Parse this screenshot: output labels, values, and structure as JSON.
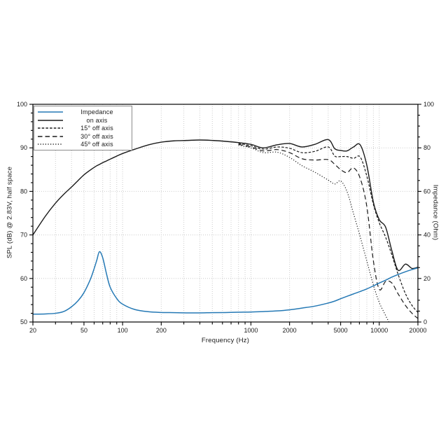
{
  "page": {
    "background": "#ffffff"
  },
  "chart": {
    "x_axis": {
      "title": "Frequency (Hz)",
      "scale": "log",
      "min": 20,
      "max": 20000,
      "labeled_ticks": [
        20,
        50,
        100,
        200,
        1000,
        2000,
        5000,
        10000,
        20000
      ],
      "all_ticks": [
        20,
        30,
        40,
        50,
        60,
        70,
        80,
        90,
        100,
        200,
        300,
        400,
        500,
        600,
        700,
        800,
        900,
        1000,
        2000,
        3000,
        4000,
        5000,
        6000,
        7000,
        8000,
        9000,
        10000,
        20000
      ]
    },
    "y_left": {
      "title": "SPL (dB) @ 2.83V, half space",
      "min": 50,
      "max": 100,
      "labeled_ticks": [
        50,
        60,
        70,
        80,
        90,
        100
      ],
      "major_tick_step": 10,
      "minor_tick_step": 2,
      "gridline_values": [
        60,
        70,
        80,
        90
      ]
    },
    "y_right": {
      "title": "Impedance (Ohm)",
      "min": 0,
      "max": 100,
      "labeled_ticks": [
        0,
        20,
        40,
        60,
        80,
        100
      ],
      "major_tick_step": 20,
      "minor_tick_step": 5
    },
    "colors": {
      "axis": "#000000",
      "gridline": "#cccccc",
      "impedance_blue": "#2579b5",
      "spl_black": "#1a1a1a",
      "legend_border": "#8c8c8c",
      "tick_label": "#1a1a1a"
    }
  },
  "legend": {
    "items": [
      {
        "label": "Impedance",
        "style": "solid",
        "color": "#2579b5"
      },
      {
        "label": "on axis",
        "style": "solid",
        "color": "#1a1a1a"
      },
      {
        "label": "15° off axis",
        "style": "dash-small",
        "color": "#1a1a1a"
      },
      {
        "label": "30° off axis",
        "style": "dash-medium",
        "color": "#1a1a1a"
      },
      {
        "label": "45º off axis",
        "style": "dot",
        "color": "#1a1a1a"
      }
    ]
  },
  "chart_data": {
    "type": "line",
    "x_scale": "log",
    "xlabel": "Frequency (Hz)",
    "ylabel_left": "SPL (dB) @ 2.83V, half space",
    "ylabel_right": "Impedance (Ohm)",
    "xlim": [
      20,
      20000
    ],
    "ylim_left": [
      50,
      100
    ],
    "ylim_right": [
      0,
      100
    ],
    "grid": true,
    "legend_position": "top-left",
    "frequencies_hz": [
      20,
      25,
      30,
      35,
      40,
      45,
      50,
      56,
      60,
      63,
      66,
      70,
      75,
      80,
      90,
      100,
      125,
      160,
      200,
      250,
      315,
      400,
      500,
      630,
      800,
      1000,
      1250,
      1600,
      2000,
      2500,
      3150,
      4000,
      4500,
      5000,
      5600,
      6300,
      7100,
      8000,
      9000,
      10000,
      11200,
      12500,
      14000,
      16000,
      18000,
      20000
    ],
    "series": [
      {
        "name": "Impedance",
        "axis": "right",
        "unit": "Ohm",
        "style": "solid",
        "color": "#2579b5",
        "width": 1.5,
        "values": [
          3.6,
          3.7,
          4.0,
          4.9,
          7.0,
          9.8,
          13.5,
          19.5,
          24.5,
          28.5,
          32.3,
          29.5,
          22.0,
          16.0,
          10.8,
          8.2,
          5.7,
          4.7,
          4.4,
          4.3,
          4.2,
          4.2,
          4.3,
          4.35,
          4.5,
          4.6,
          4.8,
          5.1,
          5.6,
          6.4,
          7.3,
          8.7,
          9.6,
          10.7,
          11.8,
          12.9,
          14.0,
          15.2,
          16.6,
          17.9,
          19.2,
          20.6,
          21.8,
          23.1,
          24.1,
          24.9
        ]
      },
      {
        "name": "on axis",
        "axis": "left",
        "unit": "dB",
        "style": "solid",
        "color": "#1a1a1a",
        "width": 1.4,
        "values": [
          70.0,
          74.3,
          77.3,
          79.4,
          81.0,
          82.5,
          83.8,
          84.9,
          85.5,
          85.9,
          86.2,
          86.6,
          87.0,
          87.4,
          88.1,
          88.7,
          89.7,
          90.7,
          91.3,
          91.6,
          91.7,
          91.8,
          91.7,
          91.5,
          91.2,
          90.8,
          90.0,
          90.7,
          91.0,
          90.2,
          90.8,
          91.9,
          89.8,
          89.4,
          89.3,
          90.2,
          90.7,
          86.0,
          77.5,
          73.5,
          71.8,
          66.5,
          61.9,
          63.3,
          62.3,
          62.6
        ]
      },
      {
        "name": "15° off axis",
        "axis": "left",
        "unit": "dB",
        "style": "dash-small",
        "color": "#1a1a1a",
        "width": 1.2,
        "values": [
          null,
          null,
          null,
          null,
          null,
          null,
          null,
          null,
          null,
          null,
          null,
          null,
          null,
          null,
          null,
          null,
          null,
          null,
          null,
          null,
          null,
          null,
          null,
          null,
          91.0,
          90.5,
          89.7,
          90.2,
          89.9,
          88.9,
          89.2,
          90.2,
          88.1,
          88.0,
          88.0,
          87.6,
          87.9,
          83.5,
          77.0,
          72.8,
          69.5,
          65.5,
          61.0,
          56.5,
          53.8,
          52.2
        ]
      },
      {
        "name": "30° off axis",
        "axis": "left",
        "unit": "dB",
        "style": "dash-medium",
        "color": "#1a1a1a",
        "width": 1.2,
        "values": [
          null,
          null,
          null,
          null,
          null,
          null,
          null,
          null,
          null,
          null,
          null,
          null,
          null,
          null,
          null,
          null,
          null,
          null,
          null,
          null,
          null,
          null,
          null,
          null,
          90.8,
          90.2,
          89.3,
          89.6,
          88.9,
          87.5,
          87.2,
          87.3,
          86.2,
          85.0,
          84.3,
          85.4,
          83.0,
          76.5,
          64.0,
          57.5,
          59.3,
          59.0,
          56.5,
          53.8,
          52.0,
          50.8
        ]
      },
      {
        "name": "45° off axis",
        "axis": "left",
        "unit": "dB",
        "style": "dot",
        "color": "#1a1a1a",
        "width": 1.2,
        "values": [
          null,
          null,
          null,
          null,
          null,
          null,
          null,
          null,
          null,
          null,
          null,
          null,
          null,
          null,
          null,
          null,
          null,
          null,
          null,
          null,
          null,
          null,
          null,
          null,
          90.6,
          90.0,
          88.9,
          89.0,
          87.8,
          85.9,
          84.4,
          82.6,
          81.7,
          82.4,
          80.0,
          74.9,
          69.6,
          64.0,
          58.5,
          54.5,
          51.5,
          48.5,
          44.0,
          null,
          null,
          null
        ]
      }
    ]
  }
}
